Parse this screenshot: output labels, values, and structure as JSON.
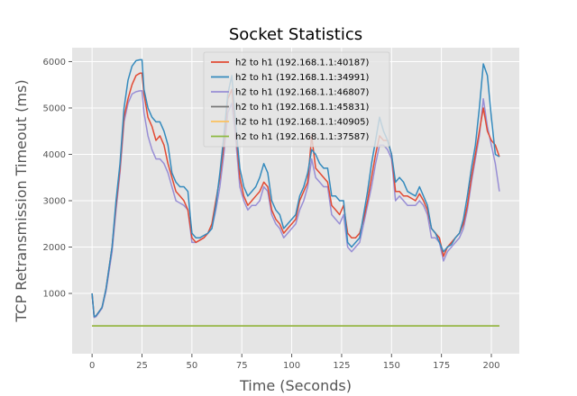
{
  "chart_data": {
    "type": "line",
    "title": "Socket Statistics",
    "xlabel": "Time (Seconds)",
    "ylabel": "TCP Retransmission Timeout (ms)",
    "xlim": [
      -10,
      214
    ],
    "ylim": [
      -300,
      6300
    ],
    "xticks": [
      0,
      25,
      50,
      75,
      100,
      125,
      150,
      175,
      200
    ],
    "yticks": [
      1000,
      2000,
      3000,
      4000,
      5000,
      6000
    ],
    "grid": true,
    "legend_position": "top-center",
    "colors": {
      "background": "#E5E5E5",
      "grid": "#FFFFFF",
      "series": [
        "#E24A33",
        "#348ABD",
        "#988ED5",
        "#777777",
        "#FBC15E",
        "#8EBA42"
      ]
    },
    "series": [
      {
        "name": "h2 to h1 (192.168.1.1:40187)",
        "x": [
          0,
          1,
          2,
          5,
          7,
          10,
          12,
          14,
          16,
          18,
          20,
          22,
          24,
          25,
          26,
          28,
          30,
          32,
          34,
          36,
          38,
          40,
          42,
          44,
          46,
          48,
          50,
          52,
          54,
          56,
          58,
          60,
          62,
          64,
          66,
          68,
          70,
          72,
          74,
          76,
          78,
          80,
          82,
          84,
          86,
          88,
          90,
          92,
          94,
          96,
          98,
          100,
          102,
          104,
          106,
          108,
          110,
          112,
          114,
          116,
          118,
          120,
          122,
          124,
          126,
          128,
          130,
          132,
          134,
          136,
          138,
          140,
          142,
          144,
          146,
          148,
          150,
          152,
          154,
          156,
          158,
          160,
          162,
          164,
          166,
          168,
          170,
          172,
          174,
          176,
          178,
          180,
          182,
          184,
          186,
          188,
          190,
          192,
          194,
          196,
          198,
          200,
          202,
          204
        ],
        "y": [
          1000,
          500,
          520,
          700,
          1100,
          2000,
          2900,
          3700,
          4800,
          5200,
          5500,
          5700,
          5750,
          5750,
          5300,
          4800,
          4600,
          4300,
          4400,
          4200,
          3800,
          3500,
          3200,
          3100,
          3000,
          2800,
          2200,
          2100,
          2150,
          2200,
          2300,
          2500,
          3000,
          3500,
          4200,
          5200,
          5400,
          4500,
          3500,
          3100,
          2900,
          3000,
          3100,
          3200,
          3400,
          3300,
          2800,
          2600,
          2500,
          2300,
          2400,
          2500,
          2600,
          3000,
          3200,
          3400,
          4400,
          3700,
          3600,
          3500,
          3400,
          2900,
          2800,
          2700,
          2900,
          2300,
          2200,
          2200,
          2300,
          2600,
          3000,
          3500,
          4000,
          4400,
          4300,
          4300,
          4000,
          3200,
          3200,
          3100,
          3100,
          3050,
          3000,
          3150,
          3000,
          2800,
          2400,
          2300,
          2200,
          1800,
          2000,
          2100,
          2200,
          2300,
          2500,
          2900,
          3500,
          4000,
          4500,
          5000,
          4500,
          4300,
          4200,
          3950
        ]
      },
      {
        "name": "h2 to h1 (192.168.1.1:34991)",
        "x": [
          0,
          1,
          2,
          5,
          7,
          10,
          12,
          14,
          16,
          18,
          20,
          22,
          24,
          25,
          26,
          28,
          30,
          32,
          34,
          36,
          38,
          40,
          42,
          44,
          46,
          48,
          50,
          52,
          54,
          56,
          58,
          60,
          62,
          64,
          66,
          68,
          70,
          72,
          74,
          76,
          78,
          80,
          82,
          84,
          86,
          88,
          90,
          92,
          94,
          96,
          98,
          100,
          102,
          104,
          106,
          108,
          110,
          112,
          114,
          116,
          118,
          120,
          122,
          124,
          126,
          128,
          130,
          132,
          134,
          136,
          138,
          140,
          142,
          144,
          146,
          148,
          150,
          152,
          154,
          156,
          158,
          160,
          162,
          164,
          166,
          168,
          170,
          172,
          174,
          176,
          178,
          180,
          182,
          184,
          186,
          188,
          190,
          192,
          194,
          196,
          198,
          200,
          202,
          204
        ],
        "y": [
          1000,
          500,
          520,
          700,
          1100,
          2000,
          3000,
          3800,
          5000,
          5600,
          5900,
          6020,
          6040,
          6040,
          5400,
          5000,
          4800,
          4700,
          4700,
          4500,
          4200,
          3600,
          3400,
          3300,
          3300,
          3200,
          2300,
          2200,
          2200,
          2250,
          2300,
          2400,
          2900,
          3600,
          4400,
          5300,
          5700,
          4600,
          3700,
          3300,
          3100,
          3200,
          3300,
          3500,
          3800,
          3600,
          3000,
          2800,
          2700,
          2400,
          2500,
          2600,
          2700,
          3100,
          3300,
          3600,
          4100,
          4000,
          3800,
          3700,
          3700,
          3100,
          3100,
          3000,
          3000,
          2100,
          2000,
          2100,
          2200,
          2700,
          3200,
          3800,
          4300,
          4800,
          4500,
          4300,
          4000,
          3400,
          3500,
          3400,
          3200,
          3150,
          3100,
          3300,
          3100,
          2900,
          2400,
          2300,
          2100,
          1900,
          2000,
          2050,
          2200,
          2300,
          2600,
          3100,
          3700,
          4200,
          5000,
          5950,
          5700,
          4800,
          4000,
          3950
        ]
      },
      {
        "name": "h2 to h1 (192.168.1.1:46807)",
        "x": [
          0,
          1,
          2,
          5,
          7,
          10,
          12,
          14,
          16,
          18,
          20,
          22,
          24,
          25,
          26,
          28,
          30,
          32,
          34,
          36,
          38,
          40,
          42,
          44,
          46,
          48,
          50,
          52,
          54,
          56,
          58,
          60,
          62,
          64,
          66,
          68,
          70,
          72,
          74,
          76,
          78,
          80,
          82,
          84,
          86,
          88,
          90,
          92,
          94,
          96,
          98,
          100,
          102,
          104,
          106,
          108,
          110,
          112,
          114,
          116,
          118,
          120,
          122,
          124,
          126,
          128,
          130,
          132,
          134,
          136,
          138,
          140,
          142,
          144,
          146,
          148,
          150,
          152,
          154,
          156,
          158,
          160,
          162,
          164,
          166,
          168,
          170,
          172,
          174,
          176,
          178,
          180,
          182,
          184,
          186,
          188,
          190,
          192,
          194,
          196,
          198,
          200,
          202,
          204
        ],
        "y": [
          1000,
          480,
          500,
          680,
          1050,
          1900,
          2800,
          3600,
          4700,
          5100,
          5300,
          5350,
          5370,
          5370,
          4900,
          4400,
          4100,
          3900,
          3900,
          3800,
          3600,
          3300,
          3000,
          2950,
          2900,
          2800,
          2100,
          2100,
          2150,
          2200,
          2300,
          2400,
          2800,
          3300,
          4000,
          4900,
          5100,
          4300,
          3300,
          3000,
          2800,
          2900,
          2900,
          3000,
          3300,
          3200,
          2700,
          2500,
          2400,
          2200,
          2300,
          2400,
          2500,
          2800,
          3000,
          3300,
          3900,
          3500,
          3400,
          3300,
          3300,
          2700,
          2600,
          2500,
          2700,
          2000,
          1900,
          2000,
          2100,
          2500,
          2900,
          3300,
          3800,
          4200,
          4200,
          4100,
          3900,
          3000,
          3100,
          3000,
          2900,
          2900,
          2900,
          3000,
          2900,
          2700,
          2200,
          2200,
          2100,
          1700,
          1900,
          2000,
          2100,
          2200,
          2400,
          2800,
          3400,
          3900,
          4400,
          5200,
          4600,
          4200,
          3800,
          3200
        ]
      },
      {
        "name": "h2 to h1 (192.168.1.1:45831)",
        "x": [
          0,
          204
        ],
        "y": [
          300,
          300
        ]
      },
      {
        "name": "h2 to h1 (192.168.1.1:40905)",
        "x": [
          0,
          204
        ],
        "y": [
          300,
          300
        ]
      },
      {
        "name": "h2 to h1 (192.168.1.1:37587)",
        "x": [
          0,
          204
        ],
        "y": [
          300,
          300
        ]
      }
    ]
  }
}
